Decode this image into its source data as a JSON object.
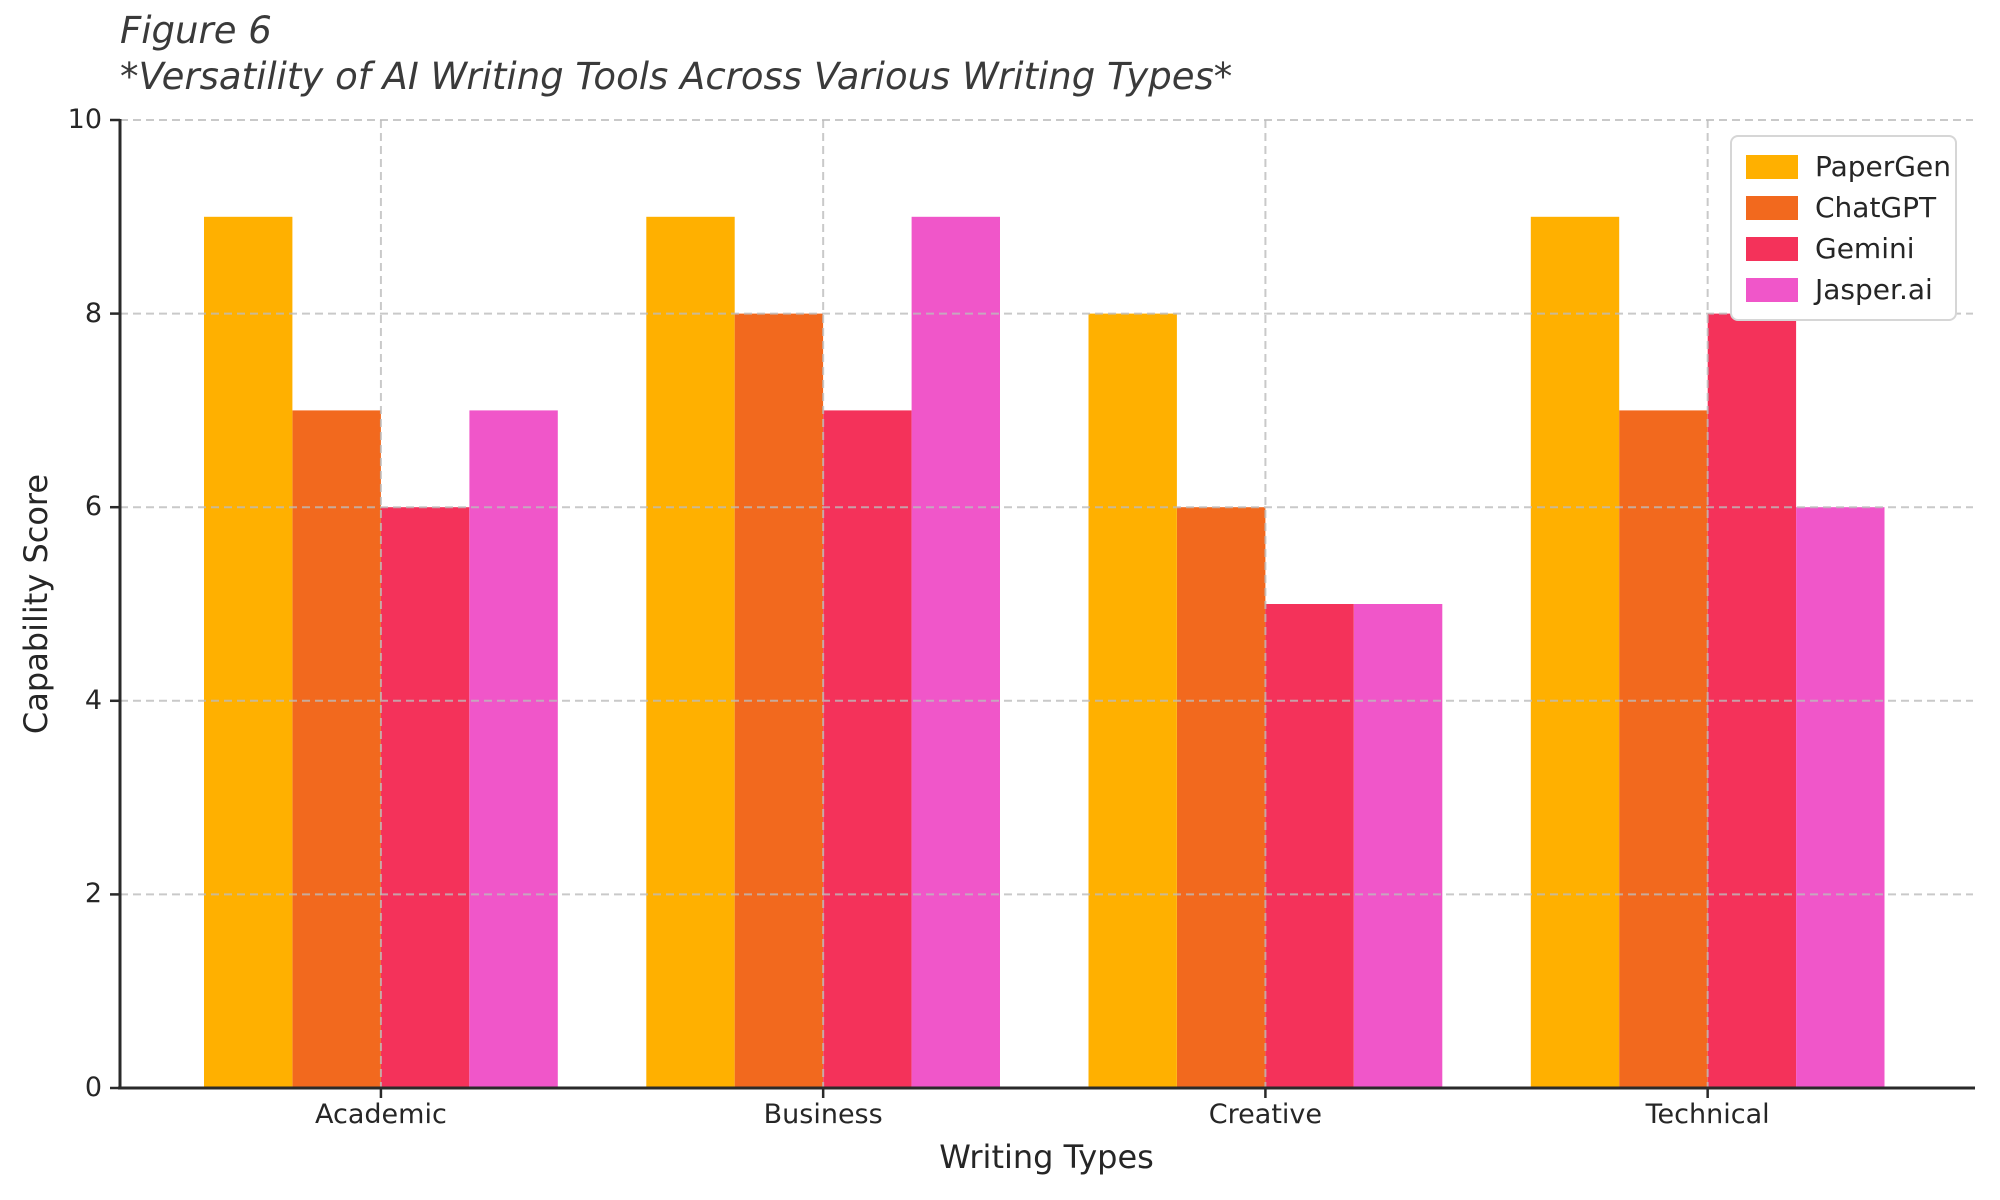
{
  "figure": {
    "title_line1": "Figure 6",
    "title_line2": "*Versatility of AI Writing Tools Across Various Writing Types*"
  },
  "chart_data": {
    "type": "bar",
    "title": "Figure 6",
    "subtitle": "*Versatility of AI Writing Tools Across Various Writing Types*",
    "categories": [
      "Academic",
      "Business",
      "Creative",
      "Technical"
    ],
    "series": [
      {
        "name": "PaperGen",
        "color": "#FFB000",
        "values": [
          9,
          9,
          8,
          9
        ]
      },
      {
        "name": "ChatGPT",
        "color": "#F2691E",
        "values": [
          7,
          8,
          6,
          7
        ]
      },
      {
        "name": "Gemini",
        "color": "#F4325A",
        "values": [
          6,
          7,
          5,
          8
        ]
      },
      {
        "name": "Jasper.ai",
        "color": "#F056C9",
        "values": [
          7,
          9,
          5,
          6
        ]
      }
    ],
    "xlabel": "Writing Types",
    "ylabel": "Capability Score",
    "ylim": [
      0,
      10
    ],
    "yticks": [
      0,
      2,
      4,
      6,
      8,
      10
    ],
    "grid": true,
    "grid_style": "dashed",
    "grid_color": "#bbbbbb",
    "axis_color": "#2a2a2a",
    "text_color": "#262626",
    "title_color": "#3a3a3a",
    "legend_position": "upper right",
    "bar_group_width": 0.8
  }
}
